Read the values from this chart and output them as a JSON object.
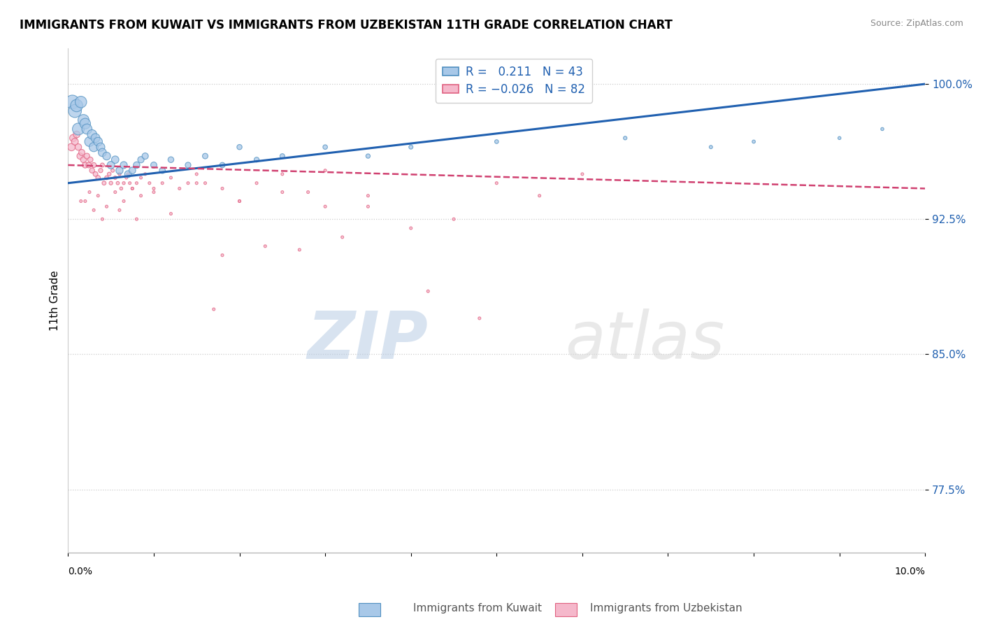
{
  "title": "IMMIGRANTS FROM KUWAIT VS IMMIGRANTS FROM UZBEKISTAN 11TH GRADE CORRELATION CHART",
  "source": "Source: ZipAtlas.com",
  "ylabel": "11th Grade",
  "y_ticks": [
    77.5,
    85.0,
    92.5,
    100.0
  ],
  "y_tick_labels": [
    "77.5%",
    "85.0%",
    "92.5%",
    "100.0%"
  ],
  "xmin": 0.0,
  "xmax": 10.0,
  "ymin": 74.0,
  "ymax": 102.0,
  "legend_R1": "0.211",
  "legend_N1": "43",
  "legend_R2": "-0.026",
  "legend_N2": "82",
  "color_kuwait": "#a8c8e8",
  "color_uzbekistan": "#f5b8cb",
  "edge_color_kuwait": "#5090c0",
  "edge_color_uzbekistan": "#e06080",
  "trend_color_kuwait": "#2060b0",
  "trend_color_uzbekistan": "#d04070",
  "watermark_zip": "ZIP",
  "watermark_atlas": "atlas",
  "kuwait_x": [
    0.05,
    0.08,
    0.1,
    0.12,
    0.15,
    0.18,
    0.2,
    0.22,
    0.25,
    0.28,
    0.3,
    0.32,
    0.35,
    0.38,
    0.4,
    0.45,
    0.5,
    0.55,
    0.6,
    0.65,
    0.7,
    0.75,
    0.8,
    0.85,
    0.9,
    1.0,
    1.1,
    1.2,
    1.4,
    1.6,
    1.8,
    2.0,
    2.2,
    2.5,
    3.0,
    3.5,
    4.0,
    5.0,
    6.5,
    7.5,
    8.0,
    9.0,
    9.5
  ],
  "kuwait_y": [
    99.0,
    98.5,
    98.8,
    97.5,
    99.0,
    98.0,
    97.8,
    97.5,
    96.8,
    97.2,
    96.5,
    97.0,
    96.8,
    96.5,
    96.2,
    96.0,
    95.5,
    95.8,
    95.2,
    95.5,
    95.0,
    95.2,
    95.5,
    95.8,
    96.0,
    95.5,
    95.2,
    95.8,
    95.5,
    96.0,
    95.5,
    96.5,
    95.8,
    96.0,
    96.5,
    96.0,
    96.5,
    96.8,
    97.0,
    96.5,
    96.8,
    97.0,
    97.5
  ],
  "kuwait_sizes": [
    200,
    180,
    160,
    150,
    140,
    130,
    120,
    110,
    100,
    95,
    90,
    85,
    80,
    75,
    70,
    65,
    60,
    58,
    55,
    52,
    50,
    48,
    45,
    43,
    42,
    40,
    38,
    36,
    34,
    32,
    30,
    28,
    26,
    24,
    22,
    20,
    18,
    16,
    14,
    12,
    11,
    10,
    10
  ],
  "uzbekistan_x": [
    0.04,
    0.06,
    0.08,
    0.1,
    0.12,
    0.14,
    0.16,
    0.18,
    0.2,
    0.22,
    0.24,
    0.26,
    0.28,
    0.3,
    0.32,
    0.35,
    0.38,
    0.4,
    0.42,
    0.45,
    0.48,
    0.5,
    0.52,
    0.55,
    0.58,
    0.6,
    0.62,
    0.65,
    0.68,
    0.7,
    0.72,
    0.75,
    0.8,
    0.85,
    0.9,
    0.95,
    1.0,
    1.1,
    1.2,
    1.3,
    1.4,
    1.5,
    1.6,
    1.8,
    2.0,
    2.2,
    2.5,
    2.8,
    3.0,
    3.5,
    4.0,
    4.5,
    5.0,
    5.5,
    6.0,
    0.15,
    0.25,
    0.35,
    0.45,
    0.55,
    0.65,
    0.75,
    0.85,
    1.0,
    1.5,
    2.0,
    2.5,
    3.0,
    3.5,
    1.8,
    2.3,
    2.7,
    3.2,
    4.2,
    4.8,
    0.2,
    0.3,
    0.4,
    0.6,
    0.8,
    1.2,
    1.7
  ],
  "uzbekistan_y": [
    96.5,
    97.0,
    96.8,
    97.2,
    96.5,
    96.0,
    96.2,
    95.8,
    95.5,
    96.0,
    95.5,
    95.8,
    95.2,
    95.5,
    95.0,
    94.8,
    95.2,
    95.5,
    94.5,
    94.8,
    95.0,
    94.5,
    95.2,
    94.8,
    94.5,
    95.0,
    94.2,
    94.5,
    94.8,
    95.0,
    94.5,
    94.2,
    94.5,
    94.8,
    95.0,
    94.5,
    94.2,
    94.5,
    94.8,
    94.2,
    94.5,
    95.0,
    94.5,
    94.2,
    93.5,
    94.5,
    95.0,
    94.0,
    95.2,
    93.2,
    92.0,
    92.5,
    94.5,
    93.8,
    95.0,
    93.5,
    94.0,
    93.8,
    93.2,
    94.0,
    93.5,
    94.2,
    93.8,
    94.0,
    94.5,
    93.5,
    94.0,
    93.2,
    93.8,
    90.5,
    91.0,
    90.8,
    91.5,
    88.5,
    87.0,
    93.5,
    93.0,
    92.5,
    93.0,
    92.5,
    92.8,
    87.5
  ],
  "uzbekistan_sizes": [
    60,
    55,
    50,
    48,
    45,
    42,
    40,
    38,
    36,
    34,
    32,
    30,
    28,
    26,
    24,
    22,
    20,
    18,
    17,
    16,
    15,
    14,
    13,
    12,
    11,
    10,
    10,
    9,
    8,
    8,
    8,
    8,
    8,
    8,
    8,
    8,
    8,
    8,
    8,
    8,
    8,
    8,
    8,
    8,
    8,
    8,
    8,
    8,
    8,
    8,
    8,
    8,
    8,
    8,
    8,
    8,
    8,
    8,
    8,
    8,
    8,
    8,
    8,
    8,
    8,
    8,
    8,
    8,
    8,
    8,
    8,
    8,
    8,
    8,
    8,
    8,
    8,
    8,
    8,
    8,
    8,
    8
  ]
}
